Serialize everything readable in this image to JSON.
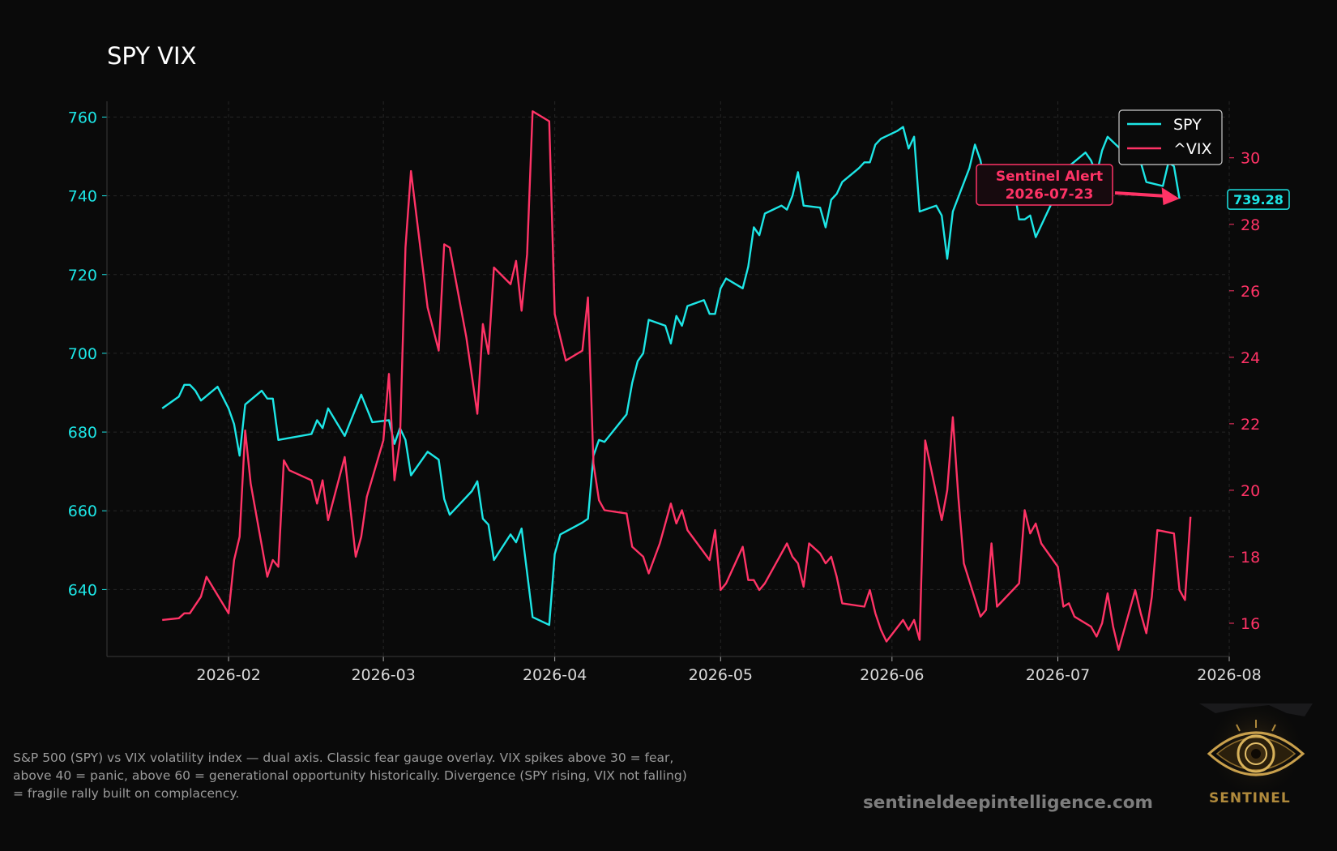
{
  "chart_data": {
    "type": "line",
    "title": "SPY VIX",
    "caption": "S&P 500 (SPY) vs VIX volatility index — dual axis. Classic fear gauge overlay. VIX spikes above 30 = fear, above 40 = panic, above 60 = generational opportunity historically. Divergence (SPY rising, VIX not falling) = fragile rally built on complacency.",
    "x_tick_labels": [
      "2026-02",
      "2026-03",
      "2026-04",
      "2026-05",
      "2026-06",
      "2026-07",
      "2026-08"
    ],
    "x_range": [
      "2026-01-10",
      "2026-08-01"
    ],
    "y_left": {
      "range": [
        623,
        764
      ],
      "ticks": [
        640,
        660,
        680,
        700,
        720,
        740,
        760
      ],
      "color": "#1de6e6"
    },
    "y_right": {
      "range": [
        15.0,
        31.7
      ],
      "ticks": [
        16,
        18,
        20,
        22,
        24,
        26,
        28,
        30
      ],
      "color": "#ff3366"
    },
    "grid": true,
    "legend_position": "top-right",
    "series": [
      {
        "name": "SPY",
        "axis": "left",
        "color": "#1de6e6",
        "points": [
          [
            "2026-01-20",
            686
          ],
          [
            "2026-01-23",
            689
          ],
          [
            "2026-01-24",
            692
          ],
          [
            "2026-01-25",
            692
          ],
          [
            "2026-01-26",
            690.5
          ],
          [
            "2026-01-27",
            688
          ],
          [
            "2026-01-30",
            691.5
          ],
          [
            "2026-02-01",
            686
          ],
          [
            "2026-02-02",
            682
          ],
          [
            "2026-02-03",
            674
          ],
          [
            "2026-02-04",
            687
          ],
          [
            "2026-02-07",
            690.5
          ],
          [
            "2026-02-08",
            688.5
          ],
          [
            "2026-02-09",
            688.5
          ],
          [
            "2026-02-10",
            678
          ],
          [
            "2026-02-16",
            679.5
          ],
          [
            "2026-02-17",
            683
          ],
          [
            "2026-02-18",
            681
          ],
          [
            "2026-02-19",
            686
          ],
          [
            "2026-02-22",
            679
          ],
          [
            "2026-02-25",
            689.5
          ],
          [
            "2026-02-27",
            682.5
          ],
          [
            "2026-03-02",
            683
          ],
          [
            "2026-03-03",
            677
          ],
          [
            "2026-03-04",
            681
          ],
          [
            "2026-03-05",
            678
          ],
          [
            "2026-03-06",
            669
          ],
          [
            "2026-03-09",
            675
          ],
          [
            "2026-03-11",
            673
          ],
          [
            "2026-03-12",
            663
          ],
          [
            "2026-03-13",
            659
          ],
          [
            "2026-03-17",
            665
          ],
          [
            "2026-03-18",
            667.5
          ],
          [
            "2026-03-19",
            658
          ],
          [
            "2026-03-20",
            656.5
          ],
          [
            "2026-03-21",
            647.5
          ],
          [
            "2026-03-24",
            654
          ],
          [
            "2026-03-25",
            652
          ],
          [
            "2026-03-26",
            655.5
          ],
          [
            "2026-03-28",
            633
          ],
          [
            "2026-03-31",
            631
          ],
          [
            "2026-04-01",
            649
          ],
          [
            "2026-04-02",
            654
          ],
          [
            "2026-04-06",
            657
          ],
          [
            "2026-04-07",
            658
          ],
          [
            "2026-04-08",
            674
          ],
          [
            "2026-04-09",
            678
          ],
          [
            "2026-04-10",
            677.5
          ],
          [
            "2026-04-14",
            684.5
          ],
          [
            "2026-04-15",
            692.5
          ],
          [
            "2026-04-16",
            698
          ],
          [
            "2026-04-17",
            700
          ],
          [
            "2026-04-18",
            708.5
          ],
          [
            "2026-04-21",
            707
          ],
          [
            "2026-04-22",
            702.5
          ],
          [
            "2026-04-23",
            709.5
          ],
          [
            "2026-04-24",
            707
          ],
          [
            "2026-04-25",
            712
          ],
          [
            "2026-04-28",
            713.5
          ],
          [
            "2026-04-29",
            710
          ],
          [
            "2026-04-30",
            710
          ],
          [
            "2026-05-01",
            716.5
          ],
          [
            "2026-05-02",
            719
          ],
          [
            "2026-05-05",
            716.5
          ],
          [
            "2026-05-06",
            722
          ],
          [
            "2026-05-07",
            732
          ],
          [
            "2026-05-08",
            730
          ],
          [
            "2026-05-09",
            735.5
          ],
          [
            "2026-05-12",
            737.5
          ],
          [
            "2026-05-13",
            736.5
          ],
          [
            "2026-05-14",
            740
          ],
          [
            "2026-05-15",
            746
          ],
          [
            "2026-05-16",
            737.5
          ],
          [
            "2026-05-19",
            737
          ],
          [
            "2026-05-20",
            732
          ],
          [
            "2026-05-21",
            739
          ],
          [
            "2026-05-22",
            740.5
          ],
          [
            "2026-05-23",
            743.5
          ],
          [
            "2026-05-26",
            747
          ],
          [
            "2026-05-27",
            748.5
          ],
          [
            "2026-05-28",
            748.5
          ],
          [
            "2026-05-29",
            753
          ],
          [
            "2026-05-30",
            754.5
          ],
          [
            "2026-06-02",
            756.5
          ],
          [
            "2026-06-03",
            757.5
          ],
          [
            "2026-06-04",
            752
          ],
          [
            "2026-06-05",
            755
          ],
          [
            "2026-06-06",
            736
          ],
          [
            "2026-06-09",
            737.5
          ],
          [
            "2026-06-10",
            735
          ],
          [
            "2026-06-11",
            724
          ],
          [
            "2026-06-12",
            736
          ],
          [
            "2026-06-15",
            747
          ],
          [
            "2026-06-16",
            753
          ],
          [
            "2026-06-17",
            749
          ],
          [
            "2026-06-18",
            742
          ],
          [
            "2026-06-19",
            746.5
          ],
          [
            "2026-06-22",
            745.5
          ],
          [
            "2026-06-23",
            742.5
          ],
          [
            "2026-06-24",
            734
          ],
          [
            "2026-06-25",
            734
          ],
          [
            "2026-06-26",
            735
          ],
          [
            "2026-06-27",
            729.5
          ],
          [
            "2026-06-30",
            738.5
          ],
          [
            "2026-07-01",
            743.5
          ],
          [
            "2026-07-02",
            743.5
          ],
          [
            "2026-07-03",
            747.5
          ],
          [
            "2026-07-06",
            751
          ],
          [
            "2026-07-07",
            749
          ],
          [
            "2026-07-08",
            745.5
          ],
          [
            "2026-07-09",
            751.5
          ],
          [
            "2026-07-10",
            755
          ],
          [
            "2026-07-13",
            751
          ],
          [
            "2026-07-14",
            749
          ],
          [
            "2026-07-15",
            754.5
          ],
          [
            "2026-07-16",
            748.5
          ],
          [
            "2026-07-17",
            743.5
          ],
          [
            "2026-07-20",
            742.5
          ],
          [
            "2026-07-21",
            748.5
          ],
          [
            "2026-07-22",
            747.5
          ],
          [
            "2026-07-23",
            739.28
          ]
        ]
      },
      {
        "name": "^VIX",
        "axis": "right",
        "color": "#ff3366",
        "points": [
          [
            "2026-01-20",
            16.1
          ],
          [
            "2026-01-23",
            16.15
          ],
          [
            "2026-01-24",
            16.3
          ],
          [
            "2026-01-25",
            16.3
          ],
          [
            "2026-01-27",
            16.8
          ],
          [
            "2026-01-28",
            17.4
          ],
          [
            "2026-02-01",
            16.3
          ],
          [
            "2026-02-02",
            17.9
          ],
          [
            "2026-02-03",
            18.6
          ],
          [
            "2026-02-04",
            21.8
          ],
          [
            "2026-02-05",
            20.2
          ],
          [
            "2026-02-08",
            17.4
          ],
          [
            "2026-02-09",
            17.9
          ],
          [
            "2026-02-10",
            17.7
          ],
          [
            "2026-02-11",
            20.9
          ],
          [
            "2026-02-12",
            20.6
          ],
          [
            "2026-02-16",
            20.3
          ],
          [
            "2026-02-17",
            19.6
          ],
          [
            "2026-02-18",
            20.3
          ],
          [
            "2026-02-19",
            19.1
          ],
          [
            "2026-02-22",
            21.0
          ],
          [
            "2026-02-24",
            18.0
          ],
          [
            "2026-02-25",
            18.6
          ],
          [
            "2026-02-26",
            19.8
          ],
          [
            "2026-03-01",
            21.5
          ],
          [
            "2026-03-02",
            23.5
          ],
          [
            "2026-03-03",
            20.3
          ],
          [
            "2026-03-04",
            21.5
          ],
          [
            "2026-03-05",
            27.3
          ],
          [
            "2026-03-06",
            29.6
          ],
          [
            "2026-03-09",
            25.5
          ],
          [
            "2026-03-11",
            24.2
          ],
          [
            "2026-03-12",
            27.4
          ],
          [
            "2026-03-13",
            27.3
          ],
          [
            "2026-03-16",
            24.6
          ],
          [
            "2026-03-18",
            22.3
          ],
          [
            "2026-03-19",
            25.0
          ],
          [
            "2026-03-20",
            24.1
          ],
          [
            "2026-03-21",
            26.7
          ],
          [
            "2026-03-24",
            26.2
          ],
          [
            "2026-03-25",
            26.9
          ],
          [
            "2026-03-26",
            25.4
          ],
          [
            "2026-03-27",
            27.1
          ],
          [
            "2026-03-28",
            31.4
          ],
          [
            "2026-03-31",
            31.1
          ],
          [
            "2026-04-01",
            25.3
          ],
          [
            "2026-04-03",
            23.9
          ],
          [
            "2026-04-06",
            24.2
          ],
          [
            "2026-04-07",
            25.8
          ],
          [
            "2026-04-08",
            20.8
          ],
          [
            "2026-04-09",
            19.7
          ],
          [
            "2026-04-10",
            19.4
          ],
          [
            "2026-04-14",
            19.3
          ],
          [
            "2026-04-15",
            18.3
          ],
          [
            "2026-04-17",
            18.0
          ],
          [
            "2026-04-18",
            17.5
          ],
          [
            "2026-04-20",
            18.4
          ],
          [
            "2026-04-21",
            19.0
          ],
          [
            "2026-04-22",
            19.6
          ],
          [
            "2026-04-23",
            19.0
          ],
          [
            "2026-04-24",
            19.4
          ],
          [
            "2026-04-25",
            18.8
          ],
          [
            "2026-04-29",
            17.9
          ],
          [
            "2026-04-30",
            18.8
          ],
          [
            "2026-05-01",
            17.0
          ],
          [
            "2026-05-02",
            17.2
          ],
          [
            "2026-05-05",
            18.3
          ],
          [
            "2026-05-06",
            17.3
          ],
          [
            "2026-05-07",
            17.3
          ],
          [
            "2026-05-08",
            17.0
          ],
          [
            "2026-05-09",
            17.2
          ],
          [
            "2026-05-13",
            18.4
          ],
          [
            "2026-05-14",
            18.0
          ],
          [
            "2026-05-15",
            17.8
          ],
          [
            "2026-05-16",
            17.1
          ],
          [
            "2026-05-17",
            18.4
          ],
          [
            "2026-05-19",
            18.1
          ],
          [
            "2026-05-20",
            17.8
          ],
          [
            "2026-05-21",
            18.0
          ],
          [
            "2026-05-22",
            17.4
          ],
          [
            "2026-05-23",
            16.6
          ],
          [
            "2026-05-27",
            16.5
          ],
          [
            "2026-05-28",
            17.0
          ],
          [
            "2026-05-29",
            16.3
          ],
          [
            "2026-05-30",
            15.8
          ],
          [
            "2026-05-31",
            15.45
          ],
          [
            "2026-06-03",
            16.1
          ],
          [
            "2026-06-04",
            15.8
          ],
          [
            "2026-06-05",
            16.1
          ],
          [
            "2026-06-06",
            15.5
          ],
          [
            "2026-06-07",
            21.5
          ],
          [
            "2026-06-10",
            19.1
          ],
          [
            "2026-06-11",
            20.0
          ],
          [
            "2026-06-12",
            22.2
          ],
          [
            "2026-06-13",
            19.8
          ],
          [
            "2026-06-14",
            17.8
          ],
          [
            "2026-06-17",
            16.2
          ],
          [
            "2026-06-18",
            16.4
          ],
          [
            "2026-06-19",
            18.4
          ],
          [
            "2026-06-20",
            16.5
          ],
          [
            "2026-06-24",
            17.2
          ],
          [
            "2026-06-25",
            19.4
          ],
          [
            "2026-06-26",
            18.7
          ],
          [
            "2026-06-27",
            19.0
          ],
          [
            "2026-06-28",
            18.4
          ],
          [
            "2026-07-01",
            17.7
          ],
          [
            "2026-07-02",
            16.5
          ],
          [
            "2026-07-03",
            16.6
          ],
          [
            "2026-07-04",
            16.2
          ],
          [
            "2026-07-07",
            15.9
          ],
          [
            "2026-07-08",
            15.6
          ],
          [
            "2026-07-09",
            16.0
          ],
          [
            "2026-07-10",
            16.9
          ],
          [
            "2026-07-11",
            15.9
          ],
          [
            "2026-07-12",
            15.2
          ],
          [
            "2026-07-15",
            17.0
          ],
          [
            "2026-07-16",
            16.3
          ],
          [
            "2026-07-17",
            15.7
          ],
          [
            "2026-07-18",
            16.8
          ],
          [
            "2026-07-19",
            18.8
          ],
          [
            "2026-07-22",
            18.7
          ],
          [
            "2026-07-23",
            17.0
          ],
          [
            "2026-07-24",
            16.7
          ],
          [
            "2026-07-25",
            19.2
          ]
        ]
      }
    ],
    "last_value_label": "739.28",
    "annotation": {
      "line1": "Sentinel Alert",
      "line2": "2026-07-23",
      "target_date": "2026-07-23",
      "target_value": 739.28
    }
  },
  "branding": {
    "website": "sentineldeepintelligence.com",
    "logo_text": "SENTINEL"
  }
}
